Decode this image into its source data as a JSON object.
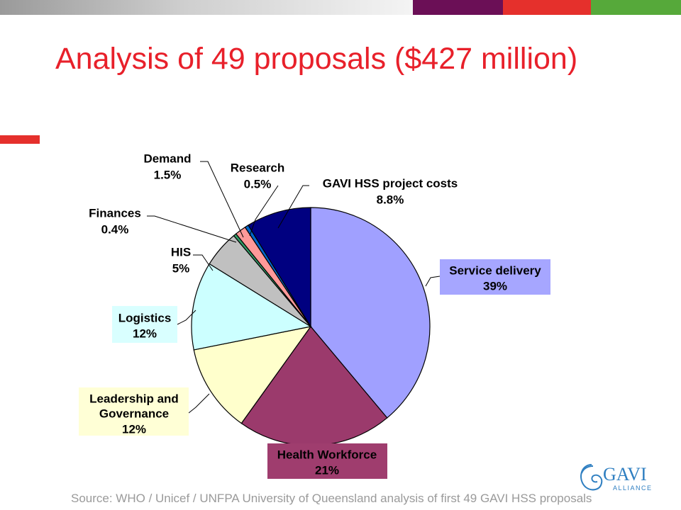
{
  "title": "Analysis of 49 proposals ($427 million)",
  "source": "Source: WHO / Unicef  / UNFPA University of Queensland analysis of first  49 GAVI HSS proposals",
  "logo": {
    "name": "GAVI",
    "subtitle": "ALLIANCE"
  },
  "colors": {
    "title": "#e8202a",
    "bar_gradient": [
      "#9a9a9a",
      "#f4f4f4"
    ],
    "bar_segments": [
      "#6b0f56",
      "#e5302c",
      "#56a93a"
    ],
    "accent": "#e5302c",
    "source_text": "#9a9a9a",
    "logo": "#2f7fc1"
  },
  "chart_data": {
    "type": "pie",
    "title": "",
    "slices": [
      {
        "name": "Service delivery",
        "value": 39,
        "label": "39%",
        "color": "#a0a0ff",
        "label_box": "#a6a6ff"
      },
      {
        "name": "Health Workforce",
        "value": 21,
        "label": "21%",
        "color": "#9b3a6c",
        "label_box": "#9f3d6e"
      },
      {
        "name": "Leadership and Governance",
        "value": 12,
        "label": "12%",
        "color": "#ffffcc",
        "label_box": "#ffffd6"
      },
      {
        "name": "Logistics",
        "value": 12,
        "label": "12%",
        "color": "#ccffff",
        "label_box": "#d9ffff"
      },
      {
        "name": "HIS",
        "value": 5,
        "label": "5%",
        "color": "#c0c0c0",
        "label_box": null
      },
      {
        "name": "Finances",
        "value": 0.4,
        "label": "0.4%",
        "color": "#339966",
        "label_box": null
      },
      {
        "name": "Demand",
        "value": 1.5,
        "label": "1.5%",
        "color": "#ff9999",
        "label_box": null
      },
      {
        "name": "Research",
        "value": 0.5,
        "label": "0.5%",
        "color": "#0066cc",
        "label_box": null
      },
      {
        "name": "GAVI HSS project costs",
        "value": 8.8,
        "label": "8.8%",
        "color": "#000080",
        "label_box": null
      }
    ],
    "start_angle": "12 o'clock",
    "direction": "clockwise",
    "legend": "none (leader-line labels)"
  }
}
